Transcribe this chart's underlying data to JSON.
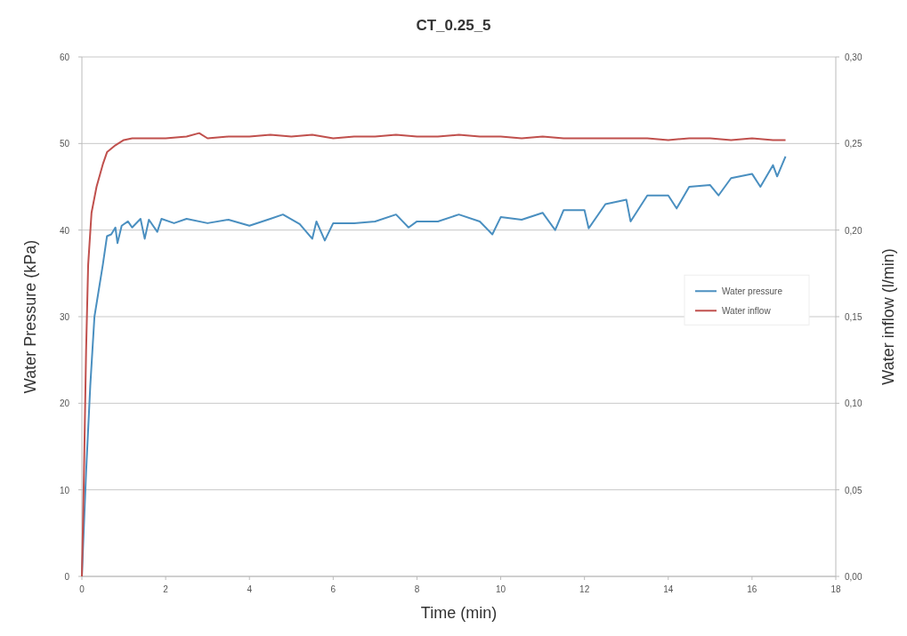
{
  "chart_data": {
    "type": "line",
    "title": "CT_0.25_5",
    "xlabel": "Time (min)",
    "ylabel": "Water Pressure (kPa)",
    "y2label": "Water inflow (l/min)",
    "xlim": [
      0,
      18
    ],
    "xticks": [
      0,
      2,
      4,
      6,
      8,
      10,
      12,
      14,
      16,
      18
    ],
    "ylim": [
      0,
      60
    ],
    "yticks": [
      0,
      10,
      20,
      30,
      40,
      50,
      60
    ],
    "y2lim": [
      0,
      0.3
    ],
    "y2ticks": [
      {
        "value": 0,
        "label": "0,00"
      },
      {
        "value": 0.05,
        "label": "0,05"
      },
      {
        "value": 0.1,
        "label": "0,10"
      },
      {
        "value": 0.15,
        "label": "0,15"
      },
      {
        "value": 0.2,
        "label": "0,20"
      },
      {
        "value": 0.25,
        "label": "0,25"
      },
      {
        "value": 0.3,
        "label": "0,30"
      }
    ],
    "grid": "y",
    "legend": "right",
    "marker": "none",
    "line_style": "solid",
    "series": [
      {
        "name": "Water pressure",
        "color": "#4a8fc0",
        "x": [
          0,
          0.1,
          0.2,
          0.3,
          0.4,
          0.5,
          0.6,
          0.7,
          0.8,
          0.85,
          0.95,
          1.1,
          1.2,
          1.4,
          1.5,
          1.6,
          1.8,
          1.9,
          2.2,
          2.5,
          3,
          3.5,
          4,
          4.5,
          4.8,
          5.2,
          5.5,
          5.6,
          5.8,
          6,
          6.5,
          7,
          7.5,
          7.8,
          8,
          8.5,
          9,
          9.5,
          9.8,
          10,
          10.5,
          11,
          11.3,
          11.5,
          12,
          12.1,
          12.5,
          13,
          13.1,
          13.5,
          14,
          14.2,
          14.5,
          15,
          15.2,
          15.5,
          16,
          16.2,
          16.5,
          16.6,
          16.8
        ],
        "values": [
          0,
          12,
          22,
          30,
          33,
          36,
          39.3,
          39.5,
          40.3,
          38.5,
          40.5,
          41,
          40.3,
          41.3,
          39,
          41.2,
          39.8,
          41.3,
          40.8,
          41.3,
          40.8,
          41.2,
          40.5,
          41.3,
          41.8,
          40.7,
          39,
          41,
          38.8,
          40.8,
          40.8,
          41,
          41.8,
          40.3,
          41,
          41,
          41.8,
          41,
          39.5,
          41.5,
          41.2,
          42,
          40,
          42.3,
          42.3,
          40.2,
          43,
          43.5,
          41,
          44,
          44,
          42.5,
          45,
          45.2,
          44,
          46,
          46.5,
          45,
          47.5,
          46.2,
          48.5
        ]
      },
      {
        "name": "Water inflow",
        "color": "#c0504d",
        "axis": "y2",
        "x": [
          0,
          0.05,
          0.1,
          0.15,
          0.23,
          0.35,
          0.5,
          0.6,
          0.8,
          1,
          1.2,
          1.5,
          2,
          2.5,
          2.8,
          3,
          3.5,
          4,
          4.5,
          5,
          5.5,
          6,
          6.5,
          7,
          7.5,
          8,
          8.5,
          9,
          9.5,
          10,
          10.5,
          11,
          11.5,
          12,
          12.5,
          13,
          13.5,
          14,
          14.5,
          15,
          15.5,
          16,
          16.5,
          16.8
        ],
        "values": [
          0,
          0.06,
          0.13,
          0.18,
          0.21,
          0.225,
          0.238,
          0.245,
          0.249,
          0.252,
          0.253,
          0.253,
          0.253,
          0.254,
          0.256,
          0.253,
          0.254,
          0.254,
          0.255,
          0.254,
          0.255,
          0.253,
          0.254,
          0.254,
          0.255,
          0.254,
          0.254,
          0.255,
          0.254,
          0.254,
          0.253,
          0.254,
          0.253,
          0.253,
          0.253,
          0.253,
          0.253,
          0.252,
          0.253,
          0.253,
          0.252,
          0.253,
          0.252,
          0.252
        ]
      }
    ]
  }
}
